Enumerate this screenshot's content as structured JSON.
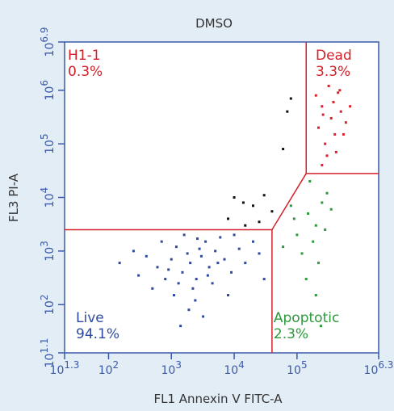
{
  "chart_data": {
    "type": "scatter",
    "title": "DMSO",
    "x_label": "FL1 Annexin V FITC-A",
    "y_label": "FL3 PI-A",
    "log_x": true,
    "log_y": true,
    "xlim": [
      19.95,
      1995262
    ],
    "ylim": [
      12.59,
      7943282
    ],
    "xticks": [
      {
        "value": 19.95,
        "label": "10^1.3"
      },
      {
        "value": 100,
        "label": "10^2"
      },
      {
        "value": 1000,
        "label": "10^3"
      },
      {
        "value": 10000,
        "label": "10^4"
      },
      {
        "value": 100000,
        "label": "10^5"
      },
      {
        "value": 1995262,
        "label": "10^6.3"
      }
    ],
    "yticks": [
      {
        "value": 12.59,
        "label": "10^1.1"
      },
      {
        "value": 100,
        "label": "10^2"
      },
      {
        "value": 1000,
        "label": "10^3"
      },
      {
        "value": 10000,
        "label": "10^4"
      },
      {
        "value": 100000,
        "label": "10^5"
      },
      {
        "value": 1000000,
        "label": "10^6"
      },
      {
        "value": 7943282,
        "label": "10^6.9"
      }
    ],
    "gates": [
      {
        "name": "H1-1",
        "stat": "0.3%",
        "color": "#d4202a"
      },
      {
        "name": "Dead",
        "stat": "3.3%",
        "color": "#d4202a"
      },
      {
        "name": "Live",
        "stat": "94.1%",
        "color": "#2e4a9e"
      },
      {
        "name": "Apoptotic",
        "stat": "2.3%",
        "color": "#2a9a3a"
      }
    ],
    "gate_color": "#d4202a",
    "gate_lines": [
      {
        "x": [
          19.95,
          40000
        ],
        "y": [
          2500,
          2500
        ]
      },
      {
        "x": [
          40000,
          40000
        ],
        "y": [
          12.59,
          2500
        ]
      },
      {
        "x": [
          40000,
          140000
        ],
        "y": [
          2500,
          28000
        ]
      },
      {
        "x": [
          140000,
          1995262
        ],
        "y": [
          28000,
          28000
        ]
      },
      {
        "x": [
          140000,
          140000
        ],
        "y": [
          28000,
          7943282
        ]
      }
    ],
    "series": [
      {
        "color": "#2e4a9e",
        "x": [
          2000,
          1500,
          3000,
          2500,
          1000,
          4000,
          800,
          5000,
          1200,
          3500,
          600,
          7000,
          2200,
          1800,
          9000,
          400,
          2800,
          1300,
          6000,
          15000,
          20000,
          300,
          2400,
          1100,
          3200,
          700,
          10000,
          500,
          4500,
          1600,
          25000,
          250,
          1900,
          3800,
          12000,
          900,
          5500,
          2600,
          150,
          30000,
          8000,
          1400
        ],
        "y": [
          600,
          400,
          800,
          300,
          700,
          500,
          300,
          1000,
          1200,
          1500,
          500,
          700,
          200,
          900,
          400,
          800,
          1100,
          250,
          1800,
          600,
          1500,
          350,
          120,
          150,
          60,
          1500,
          2000,
          200,
          250,
          2000,
          900,
          1000,
          80,
          350,
          1100,
          450,
          600,
          1700,
          600,
          300,
          150,
          40
        ]
      },
      {
        "color": "#2a9a3a",
        "x": [
          150000,
          200000,
          100000,
          250000,
          180000,
          300000,
          120000,
          220000,
          90000,
          160000,
          280000,
          60000,
          140000,
          350000,
          200000,
          80000,
          240000
        ],
        "y": [
          5000,
          3000,
          2000,
          8000,
          1500,
          12000,
          900,
          600,
          4000,
          20000,
          2500,
          1200,
          300,
          6000,
          150,
          7000,
          40
        ]
      },
      {
        "color": "#e0202a",
        "x": [
          250000,
          350000,
          200000,
          400000,
          300000,
          500000,
          220000,
          450000,
          600000,
          280000,
          380000,
          250000,
          700000,
          320000,
          420000,
          550000,
          260000,
          480000
        ],
        "y": [
          500000,
          300000,
          800000,
          150000,
          60000,
          400000,
          200000,
          900000,
          250000,
          100000,
          600000,
          40000,
          500000,
          1200000,
          70000,
          150000,
          350000,
          1000000
        ]
      },
      {
        "color": "#111111",
        "x": [
          80000,
          70000,
          60000,
          30000,
          20000,
          10000,
          14000,
          8000,
          25000,
          40000,
          15000
        ],
        "y": [
          700000,
          400000,
          80000,
          11000,
          7000,
          10000,
          8000,
          4000,
          3500,
          5500,
          3000
        ]
      }
    ]
  }
}
